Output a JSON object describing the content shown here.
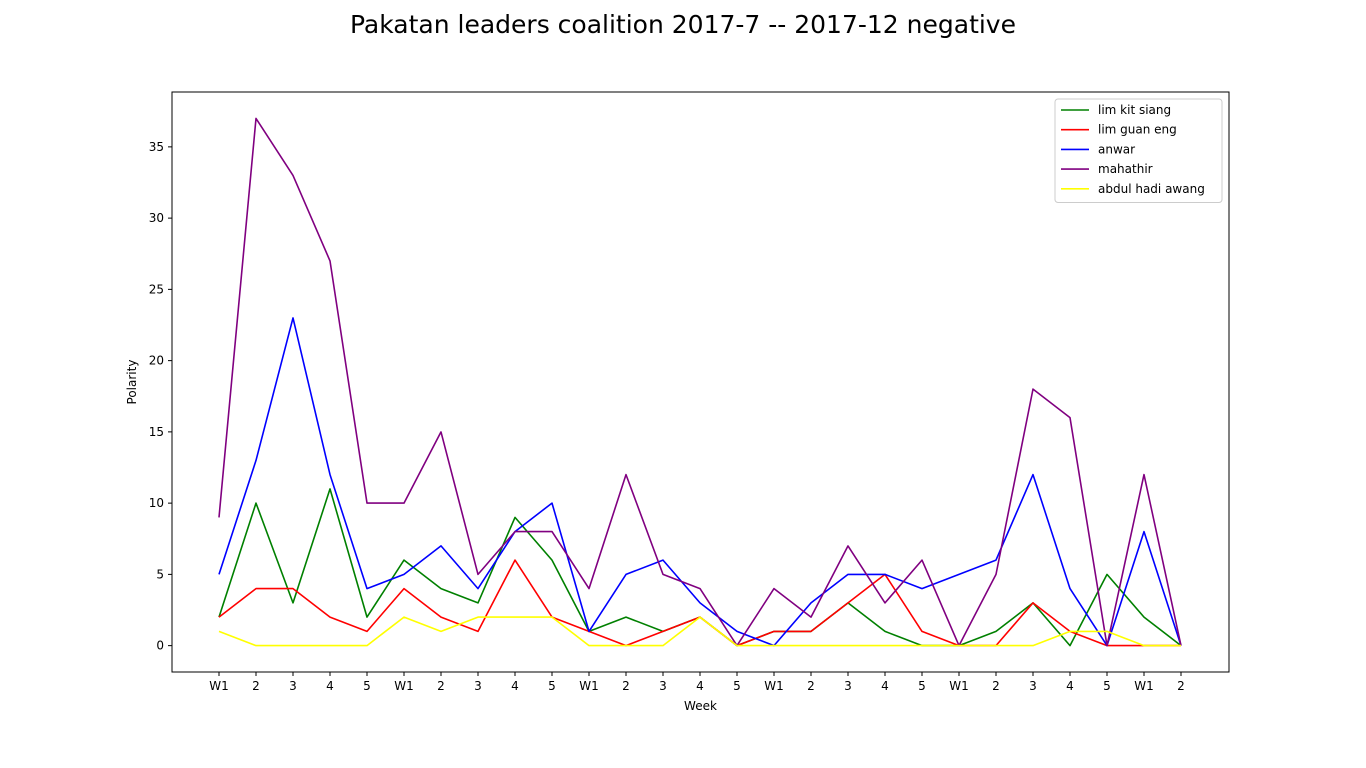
{
  "chart_data": {
    "type": "line",
    "title": "Pakatan leaders coalition 2017-7 -- 2017-12 negative",
    "xlabel": "Week",
    "ylabel": "Polarity",
    "x_tick_labels": [
      "W1",
      "2",
      "3",
      "4",
      "5",
      "W1",
      "2",
      "3",
      "4",
      "5",
      "W1",
      "2",
      "3",
      "4",
      "5",
      "W1",
      "2",
      "3",
      "4",
      "5",
      "W1",
      "2",
      "3",
      "4",
      "5",
      "W1",
      "2"
    ],
    "y_ticks": [
      0,
      5,
      10,
      15,
      20,
      25,
      30,
      35
    ],
    "ylim": [
      -1.85,
      38.85
    ],
    "legend_position": "upper right",
    "grid": false,
    "series": [
      {
        "name": "lim kit siang",
        "color": "#008000",
        "values": [
          2,
          10,
          3,
          11,
          2,
          6,
          4,
          3,
          9,
          6,
          1,
          2,
          1,
          2,
          0,
          1,
          1,
          3,
          1,
          0,
          0,
          1,
          3,
          0,
          5,
          2,
          0
        ]
      },
      {
        "name": "lim guan eng",
        "color": "#ff0000",
        "values": [
          2,
          4,
          4,
          2,
          1,
          4,
          2,
          1,
          6,
          2,
          1,
          0,
          1,
          2,
          0,
          1,
          1,
          3,
          5,
          1,
          0,
          0,
          3,
          1,
          0,
          0,
          0
        ]
      },
      {
        "name": "anwar",
        "color": "#0000ff",
        "values": [
          5,
          13,
          23,
          12,
          4,
          5,
          7,
          4,
          8,
          10,
          1,
          5,
          6,
          3,
          1,
          0,
          3,
          5,
          5,
          4,
          5,
          6,
          12,
          4,
          0,
          8,
          0
        ]
      },
      {
        "name": "mahathir",
        "color": "#800080",
        "values": [
          9,
          37,
          33,
          27,
          10,
          10,
          15,
          5,
          8,
          8,
          4,
          12,
          5,
          4,
          0,
          4,
          2,
          7,
          3,
          6,
          0,
          5,
          18,
          16,
          0,
          12,
          0
        ]
      },
      {
        "name": "abdul hadi awang",
        "color": "#ffff00",
        "values": [
          1,
          0,
          0,
          0,
          0,
          2,
          1,
          2,
          2,
          2,
          0,
          0,
          0,
          2,
          0,
          0,
          0,
          0,
          0,
          0,
          0,
          0,
          0,
          1,
          1,
          0,
          0
        ]
      }
    ]
  }
}
